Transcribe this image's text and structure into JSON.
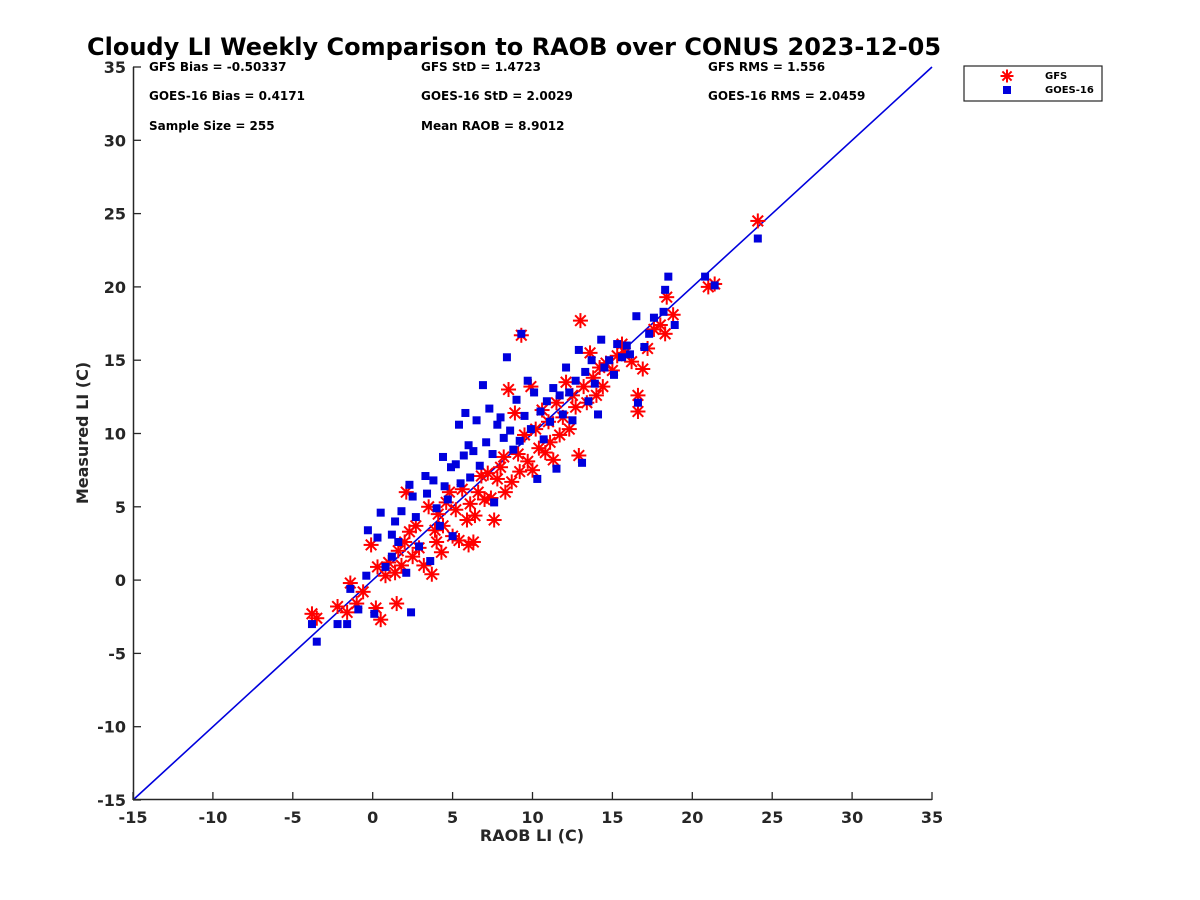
{
  "chart_data": {
    "type": "scatter",
    "title": "Cloudy LI Weekly Comparison to RAOB over CONUS 2023-12-05",
    "xlabel": "RAOB LI (C)",
    "ylabel": "Measured LI (C)",
    "xlim": [
      -15,
      35
    ],
    "ylim": [
      -15,
      35
    ],
    "xticks": [
      -15,
      -10,
      -5,
      0,
      5,
      10,
      15,
      20,
      25,
      30,
      35
    ],
    "yticks": [
      -15,
      -10,
      -5,
      0,
      5,
      10,
      15,
      20,
      25,
      30,
      35
    ],
    "grid": false,
    "legend_position": "top-right (outside plot)",
    "reference_line": {
      "slope": 1,
      "intercept": 0,
      "color": "#0000dd"
    },
    "stats": [
      "GFS Bias = -0.50337",
      "GFS StD = 1.4723",
      "GFS RMS = 1.556",
      "GOES-16 Bias = 0.4171",
      "GOES-16 StD = 2.0029",
      "GOES-16 RMS = 2.0459",
      "Sample Size = 255",
      "Mean RAOB = 8.9012"
    ],
    "series": [
      {
        "name": "GFS",
        "marker": "asterisk",
        "color": "#ff0000",
        "points": [
          [
            -3.8,
            -2.3
          ],
          [
            -3.5,
            -2.6
          ],
          [
            -2.2,
            -1.8
          ],
          [
            -1.6,
            -2.2
          ],
          [
            -1.4,
            -0.2
          ],
          [
            -1.0,
            -1.6
          ],
          [
            -0.6,
            -0.8
          ],
          [
            0.2,
            -1.9
          ],
          [
            0.5,
            -2.7
          ],
          [
            -0.1,
            2.4
          ],
          [
            0.3,
            0.9
          ],
          [
            0.8,
            0.3
          ],
          [
            1.0,
            1.2
          ],
          [
            1.4,
            0.5
          ],
          [
            1.6,
            2.0
          ],
          [
            1.5,
            -1.6
          ],
          [
            1.8,
            1.0
          ],
          [
            2.0,
            2.6
          ],
          [
            2.1,
            6.0
          ],
          [
            2.3,
            3.3
          ],
          [
            2.5,
            1.6
          ],
          [
            2.7,
            3.7
          ],
          [
            2.9,
            2.2
          ],
          [
            3.2,
            1.0
          ],
          [
            3.5,
            5.0
          ],
          [
            3.7,
            0.4
          ],
          [
            3.9,
            3.4
          ],
          [
            4.0,
            2.6
          ],
          [
            4.1,
            4.5
          ],
          [
            4.3,
            1.9
          ],
          [
            4.4,
            3.7
          ],
          [
            4.6,
            5.3
          ],
          [
            4.8,
            6.0
          ],
          [
            5.0,
            3.0
          ],
          [
            5.2,
            4.8
          ],
          [
            5.4,
            2.7
          ],
          [
            5.6,
            6.2
          ],
          [
            5.9,
            4.1
          ],
          [
            6.0,
            2.4
          ],
          [
            6.1,
            5.2
          ],
          [
            6.3,
            2.6
          ],
          [
            6.4,
            4.4
          ],
          [
            6.6,
            6.0
          ],
          [
            6.8,
            7.1
          ],
          [
            7.0,
            5.5
          ],
          [
            7.2,
            7.3
          ],
          [
            7.4,
            5.6
          ],
          [
            7.6,
            4.1
          ],
          [
            7.8,
            6.9
          ],
          [
            8.0,
            7.7
          ],
          [
            8.2,
            8.4
          ],
          [
            8.3,
            6.0
          ],
          [
            8.5,
            13.0
          ],
          [
            8.7,
            6.7
          ],
          [
            8.9,
            11.4
          ],
          [
            9.1,
            8.6
          ],
          [
            9.2,
            7.4
          ],
          [
            9.3,
            16.7
          ],
          [
            9.5,
            9.9
          ],
          [
            9.7,
            8.1
          ],
          [
            9.9,
            13.2
          ],
          [
            10.0,
            7.5
          ],
          [
            10.2,
            10.3
          ],
          [
            10.4,
            9.0
          ],
          [
            10.6,
            11.6
          ],
          [
            10.8,
            8.7
          ],
          [
            11.0,
            10.8
          ],
          [
            11.1,
            9.4
          ],
          [
            11.3,
            8.2
          ],
          [
            11.5,
            12.1
          ],
          [
            11.7,
            9.9
          ],
          [
            11.9,
            11.1
          ],
          [
            12.1,
            13.5
          ],
          [
            12.3,
            10.3
          ],
          [
            12.5,
            12.6
          ],
          [
            12.7,
            11.8
          ],
          [
            12.9,
            8.5
          ],
          [
            13.0,
            17.7
          ],
          [
            13.2,
            13.2
          ],
          [
            13.4,
            12.1
          ],
          [
            13.6,
            15.5
          ],
          [
            13.8,
            13.8
          ],
          [
            14.0,
            12.6
          ],
          [
            14.2,
            14.5
          ],
          [
            14.4,
            13.2
          ],
          [
            14.6,
            14.8
          ],
          [
            15.0,
            14.3
          ],
          [
            15.3,
            15.3
          ],
          [
            15.6,
            16.1
          ],
          [
            15.8,
            15.5
          ],
          [
            16.2,
            14.9
          ],
          [
            16.6,
            12.6
          ],
          [
            16.6,
            11.5
          ],
          [
            16.9,
            14.4
          ],
          [
            17.2,
            15.8
          ],
          [
            17.6,
            17.1
          ],
          [
            18.0,
            17.4
          ],
          [
            18.3,
            16.8
          ],
          [
            18.4,
            19.3
          ],
          [
            18.8,
            18.1
          ],
          [
            21.0,
            20.0
          ],
          [
            21.4,
            20.2
          ],
          [
            24.1,
            24.5
          ]
        ]
      },
      {
        "name": "GOES-16",
        "marker": "square",
        "color": "#0000dd",
        "points": [
          [
            -3.8,
            -3.0
          ],
          [
            -3.5,
            -4.2
          ],
          [
            -2.2,
            -3.0
          ],
          [
            -1.6,
            -3.0
          ],
          [
            -1.4,
            -0.6
          ],
          [
            -0.9,
            -2.0
          ],
          [
            -0.4,
            0.3
          ],
          [
            -0.3,
            3.4
          ],
          [
            0.1,
            -2.3
          ],
          [
            0.3,
            2.9
          ],
          [
            0.5,
            4.6
          ],
          [
            0.8,
            0.9
          ],
          [
            1.2,
            1.6
          ],
          [
            1.2,
            3.1
          ],
          [
            1.4,
            4.0
          ],
          [
            1.6,
            2.6
          ],
          [
            1.8,
            4.7
          ],
          [
            2.1,
            0.5
          ],
          [
            2.3,
            6.5
          ],
          [
            2.4,
            -2.2
          ],
          [
            2.5,
            5.7
          ],
          [
            2.7,
            4.3
          ],
          [
            2.9,
            2.3
          ],
          [
            3.3,
            7.1
          ],
          [
            3.4,
            5.9
          ],
          [
            3.6,
            1.3
          ],
          [
            3.8,
            6.8
          ],
          [
            4.0,
            4.9
          ],
          [
            4.2,
            3.7
          ],
          [
            4.4,
            8.4
          ],
          [
            4.5,
            6.4
          ],
          [
            4.7,
            5.5
          ],
          [
            4.9,
            7.7
          ],
          [
            5.0,
            3.0
          ],
          [
            5.2,
            7.9
          ],
          [
            5.4,
            10.6
          ],
          [
            5.5,
            6.6
          ],
          [
            5.7,
            8.5
          ],
          [
            5.8,
            11.4
          ],
          [
            6.0,
            9.2
          ],
          [
            6.1,
            7.0
          ],
          [
            6.3,
            8.8
          ],
          [
            6.5,
            10.9
          ],
          [
            6.7,
            7.8
          ],
          [
            6.9,
            13.3
          ],
          [
            7.1,
            9.4
          ],
          [
            7.3,
            11.7
          ],
          [
            7.5,
            8.6
          ],
          [
            7.6,
            5.3
          ],
          [
            7.8,
            10.6
          ],
          [
            8.0,
            11.1
          ],
          [
            8.2,
            9.7
          ],
          [
            8.4,
            15.2
          ],
          [
            8.6,
            10.2
          ],
          [
            8.8,
            8.9
          ],
          [
            9.0,
            12.3
          ],
          [
            9.2,
            9.5
          ],
          [
            9.3,
            16.8
          ],
          [
            9.5,
            11.2
          ],
          [
            9.7,
            13.6
          ],
          [
            9.9,
            10.3
          ],
          [
            10.1,
            12.8
          ],
          [
            10.3,
            6.9
          ],
          [
            10.5,
            11.5
          ],
          [
            10.7,
            9.6
          ],
          [
            10.9,
            12.2
          ],
          [
            11.1,
            10.8
          ],
          [
            11.3,
            13.1
          ],
          [
            11.5,
            7.6
          ],
          [
            11.7,
            12.6
          ],
          [
            11.9,
            11.3
          ],
          [
            12.1,
            14.5
          ],
          [
            12.3,
            12.8
          ],
          [
            12.5,
            10.9
          ],
          [
            12.7,
            13.6
          ],
          [
            12.9,
            15.7
          ],
          [
            13.1,
            8.0
          ],
          [
            13.3,
            14.2
          ],
          [
            13.5,
            12.2
          ],
          [
            13.7,
            15.0
          ],
          [
            13.9,
            13.4
          ],
          [
            14.1,
            11.3
          ],
          [
            14.3,
            16.4
          ],
          [
            14.5,
            14.5
          ],
          [
            14.8,
            15.0
          ],
          [
            15.1,
            14.0
          ],
          [
            15.3,
            16.1
          ],
          [
            15.6,
            15.2
          ],
          [
            15.9,
            16.0
          ],
          [
            16.1,
            15.4
          ],
          [
            16.5,
            18.0
          ],
          [
            16.6,
            12.1
          ],
          [
            17.0,
            15.9
          ],
          [
            17.3,
            16.8
          ],
          [
            17.6,
            17.9
          ],
          [
            18.2,
            18.3
          ],
          [
            18.3,
            19.8
          ],
          [
            18.5,
            20.7
          ],
          [
            18.9,
            17.4
          ],
          [
            20.8,
            20.7
          ],
          [
            21.4,
            20.1
          ],
          [
            24.1,
            23.3
          ]
        ]
      }
    ]
  }
}
